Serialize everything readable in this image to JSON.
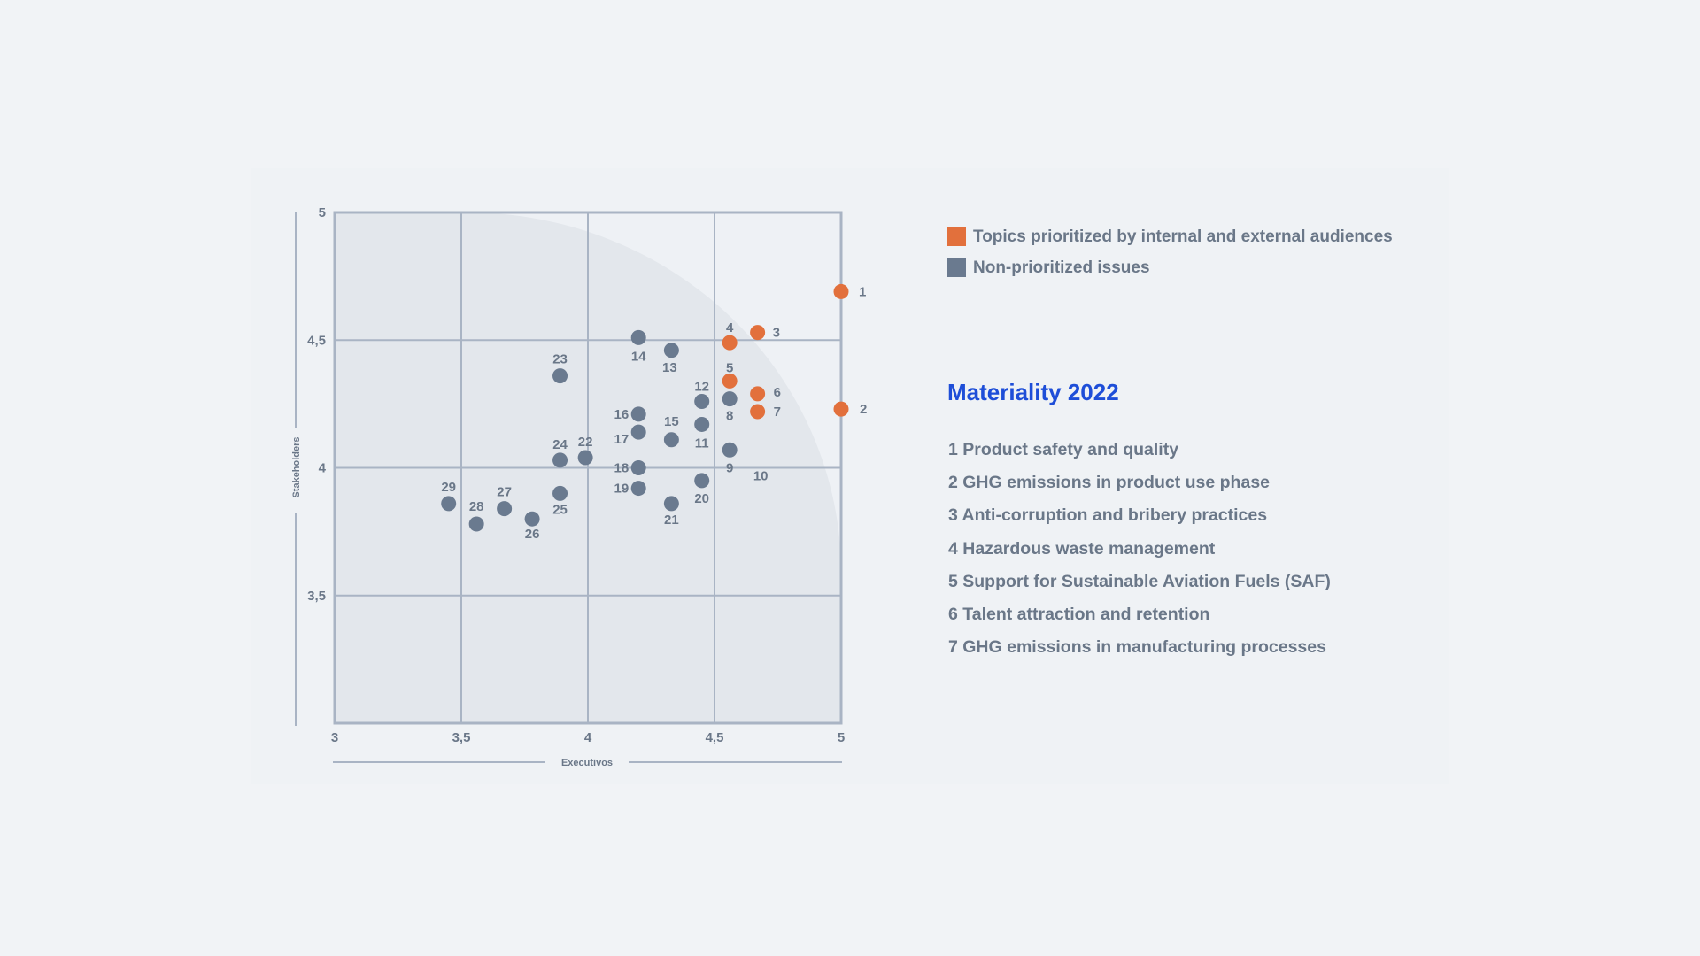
{
  "colors": {
    "prioritized": "#e2703c",
    "non_prioritized": "#6a7a8f",
    "grid": "#a9b4c4",
    "title": "#1e4ed8",
    "text": "#6a7788"
  },
  "legend": {
    "prioritized_label": "Topics prioritized by internal and external audiences",
    "non_prioritized_label": "Non-prioritized issues"
  },
  "materiality": {
    "title": "Materiality 2022",
    "topics": [
      "1 Product safety and quality",
      "2 GHG emissions in product use phase",
      "3 Anti-corruption and bribery practices",
      "4 Hazardous waste management",
      "5 Support for Sustainable Aviation Fuels (SAF)",
      "6 Talent attraction and retention",
      "7 GHG emissions in manufacturing processes"
    ]
  },
  "chart_data": {
    "type": "scatter",
    "title": "",
    "xlabel": "Executivos",
    "ylabel": "Stakeholders",
    "xlim": [
      3,
      5
    ],
    "ylim": [
      3,
      5
    ],
    "xticks": [
      "3",
      "3,5",
      "4",
      "4,5",
      "5"
    ],
    "yticks": [
      "3,5",
      "4",
      "4,5",
      "5"
    ],
    "xtick_values": [
      3,
      3.5,
      4,
      4.5,
      5
    ],
    "ytick_values": [
      3.5,
      4,
      4.5,
      5
    ],
    "grid": true,
    "series": [
      {
        "name": "Topics prioritized by internal and external audiences",
        "points": [
          {
            "id": "1",
            "x": 5.0,
            "y": 4.69
          },
          {
            "id": "2",
            "x": 5.0,
            "y": 4.23
          },
          {
            "id": "3",
            "x": 4.67,
            "y": 4.53
          },
          {
            "id": "4",
            "x": 4.56,
            "y": 4.49
          },
          {
            "id": "5",
            "x": 4.56,
            "y": 4.34
          },
          {
            "id": "6",
            "x": 4.67,
            "y": 4.29
          },
          {
            "id": "7",
            "x": 4.67,
            "y": 4.22
          }
        ]
      },
      {
        "name": "Non-prioritized issues",
        "points": [
          {
            "id": "8",
            "x": 4.56,
            "y": 4.27
          },
          {
            "id": "9",
            "x": 4.56,
            "y": 4.07
          },
          {
            "id": "10",
            "x": 4.56,
            "y": 4.07
          },
          {
            "id": "11",
            "x": 4.45,
            "y": 4.17
          },
          {
            "id": "12",
            "x": 4.45,
            "y": 4.26
          },
          {
            "id": "13",
            "x": 4.33,
            "y": 4.46
          },
          {
            "id": "14",
            "x": 4.2,
            "y": 4.51
          },
          {
            "id": "15",
            "x": 4.33,
            "y": 4.11
          },
          {
            "id": "16",
            "x": 4.2,
            "y": 4.21
          },
          {
            "id": "17",
            "x": 4.2,
            "y": 4.14
          },
          {
            "id": "18",
            "x": 4.2,
            "y": 4.0
          },
          {
            "id": "19",
            "x": 4.2,
            "y": 3.92
          },
          {
            "id": "20",
            "x": 4.45,
            "y": 3.95
          },
          {
            "id": "21",
            "x": 4.33,
            "y": 3.86
          },
          {
            "id": "22",
            "x": 3.99,
            "y": 4.04
          },
          {
            "id": "23",
            "x": 3.89,
            "y": 4.36
          },
          {
            "id": "24",
            "x": 3.89,
            "y": 4.03
          },
          {
            "id": "25",
            "x": 3.89,
            "y": 3.9
          },
          {
            "id": "26",
            "x": 3.78,
            "y": 3.8
          },
          {
            "id": "27",
            "x": 3.67,
            "y": 3.84
          },
          {
            "id": "28",
            "x": 3.56,
            "y": 3.78
          },
          {
            "id": "29",
            "x": 3.45,
            "y": 3.86
          }
        ]
      }
    ]
  }
}
